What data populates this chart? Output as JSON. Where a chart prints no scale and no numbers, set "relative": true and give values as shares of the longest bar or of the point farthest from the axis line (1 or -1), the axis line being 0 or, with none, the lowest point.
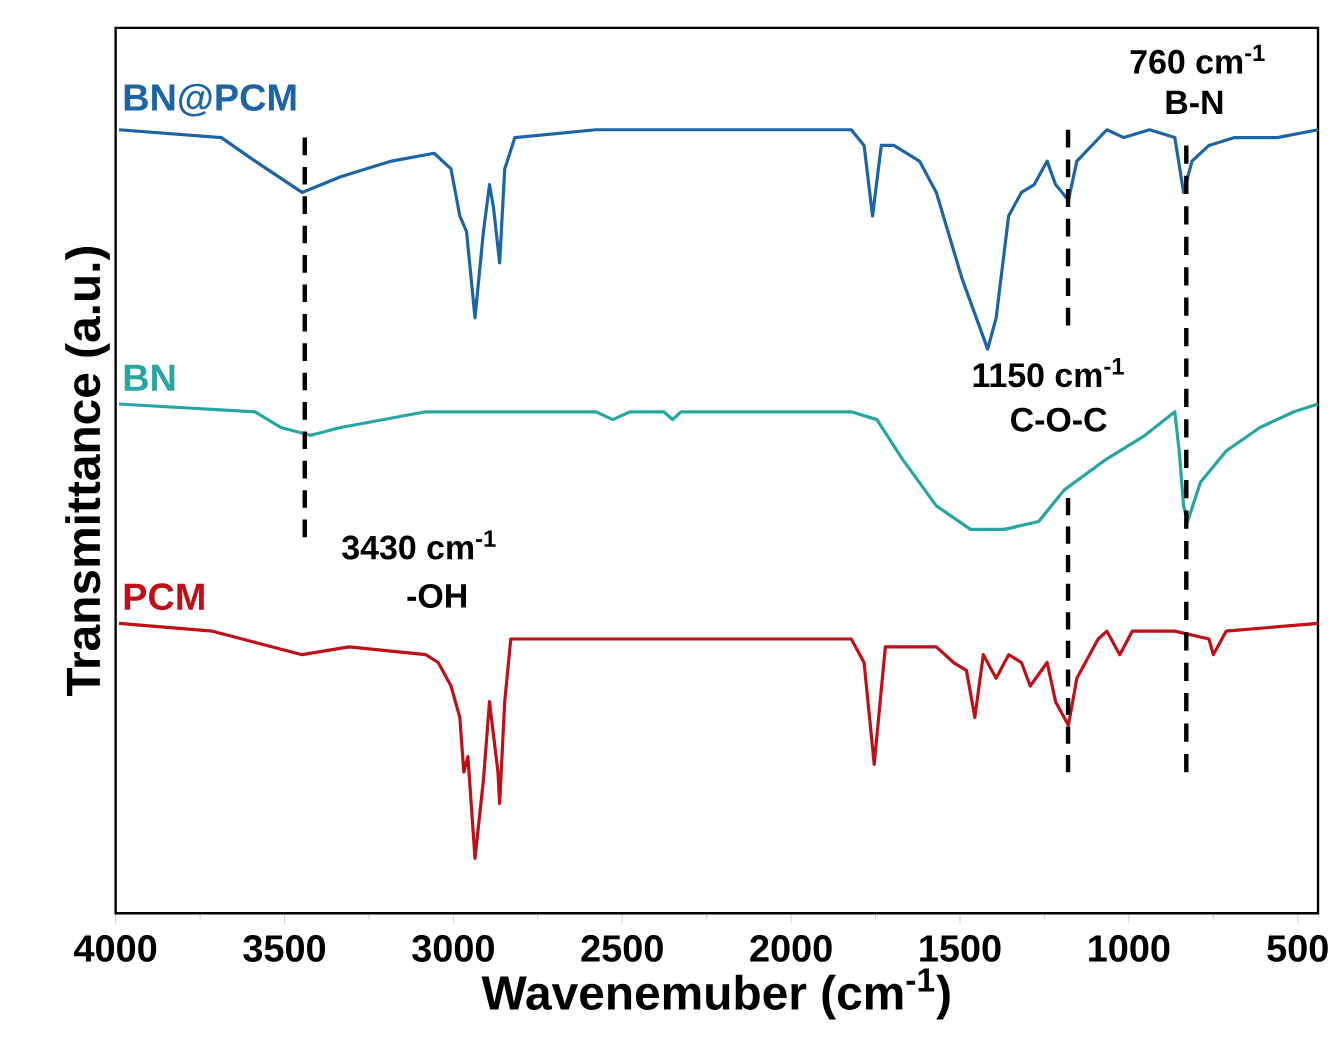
{
  "chart_data": {
    "type": "line",
    "relative": true,
    "xlabel": "Wavenemuber (cm$^{-1}$)",
    "ylabel": "Transmittance (a.u.)",
    "xlim": [
      4000,
      440
    ],
    "xticks": [
      4000,
      3500,
      3000,
      2500,
      2000,
      1500,
      1000,
      500
    ],
    "annotations": [
      "760 cm$^{-1}$",
      "B-N",
      "1150 cm$^{-1}$",
      "C-O-C",
      "3430 cm$^{-1}$",
      "-OH"
    ],
    "series": [
      {
        "name": "BN@PCM",
        "color": "#1b64a6",
        "x": [
          3990,
          3687,
          3587,
          3448,
          3334,
          3183,
          3057,
          3007,
          2981,
          2961,
          2936,
          2911,
          2893,
          2881,
          2863,
          2848,
          2818,
          2578,
          1822,
          1784,
          1759,
          1733,
          1696,
          1620,
          1570,
          1494,
          1418,
          1393,
          1356,
          1318,
          1280,
          1242,
          1217,
          1179,
          1154,
          1065,
          1015,
          939,
          864,
          838,
          813,
          763,
          687,
          561,
          440
        ],
        "values": [
          1.0,
          0.99,
          0.96,
          0.92,
          0.94,
          0.96,
          0.97,
          0.95,
          0.89,
          0.87,
          0.76,
          0.87,
          0.93,
          0.9,
          0.83,
          0.95,
          0.99,
          1.0,
          1.0,
          0.98,
          0.89,
          0.98,
          0.98,
          0.96,
          0.92,
          0.81,
          0.72,
          0.76,
          0.89,
          0.92,
          0.93,
          0.96,
          0.93,
          0.91,
          0.96,
          1.0,
          0.99,
          1.0,
          0.99,
          0.92,
          0.96,
          0.98,
          0.99,
          0.99,
          1.0
        ]
      },
      {
        "name": "BN",
        "color": "#26a6a2",
        "x": [
          3990,
          3587,
          3511,
          3422,
          3334,
          3082,
          2578,
          2528,
          2477,
          2377,
          2351,
          2326,
          1822,
          1746,
          1671,
          1570,
          1469,
          1368,
          1267,
          1192,
          1065,
          952,
          864,
          851,
          838,
          826,
          788,
          712,
          612,
          511,
          440
        ],
        "values": [
          0.65,
          0.64,
          0.62,
          0.61,
          0.62,
          0.64,
          0.64,
          0.63,
          0.64,
          0.64,
          0.63,
          0.64,
          0.64,
          0.63,
          0.58,
          0.52,
          0.49,
          0.49,
          0.5,
          0.54,
          0.58,
          0.61,
          0.64,
          0.59,
          0.52,
          0.5,
          0.55,
          0.59,
          0.62,
          0.64,
          0.65
        ]
      },
      {
        "name": "PCM",
        "color": "#c00f16",
        "x": [
          3990,
          3713,
          3448,
          3309,
          3082,
          3045,
          3007,
          2981,
          2969,
          2957,
          2936,
          2911,
          2893,
          2868,
          2863,
          2848,
          2830,
          2578,
          1822,
          1784,
          1754,
          1721,
          1570,
          1519,
          1481,
          1456,
          1431,
          1393,
          1356,
          1318,
          1292,
          1242,
          1217,
          1179,
          1154,
          1091,
          1065,
          1027,
          990,
          864,
          763,
          750,
          712,
          440
        ],
        "values": [
          0.37,
          0.36,
          0.33,
          0.34,
          0.33,
          0.32,
          0.29,
          0.25,
          0.18,
          0.2,
          0.07,
          0.17,
          0.27,
          0.18,
          0.14,
          0.27,
          0.35,
          0.35,
          0.35,
          0.32,
          0.19,
          0.34,
          0.34,
          0.32,
          0.31,
          0.25,
          0.33,
          0.3,
          0.33,
          0.32,
          0.29,
          0.32,
          0.27,
          0.24,
          0.3,
          0.35,
          0.36,
          0.33,
          0.36,
          0.36,
          0.35,
          0.33,
          0.36,
          0.37
        ]
      },
      {
        "color": "#000000",
        "line_style": "dashed",
        "x": [
          3440,
          3440
        ],
        "values": [
          0.99,
          0.48
        ]
      },
      {
        "color": "#000000",
        "line_style": "dashed",
        "x": [
          1180,
          1180
        ],
        "values": [
          1.0,
          0.75
        ]
      },
      {
        "color": "#000000",
        "line_style": "dashed",
        "x": [
          1180,
          1180
        ],
        "values": [
          0.53,
          0.18
        ]
      },
      {
        "color": "#000000",
        "line_style": "dashed",
        "x": [
          830,
          830
        ],
        "values": [
          0.98,
          0.18
        ]
      }
    ]
  }
}
